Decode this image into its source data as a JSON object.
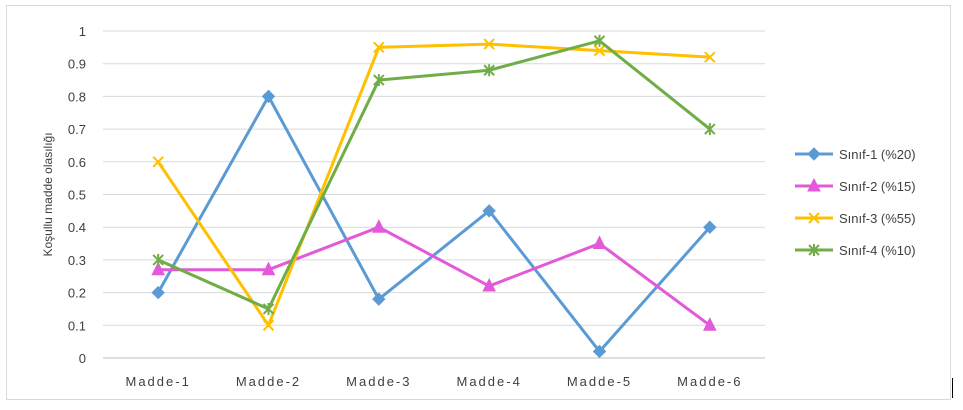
{
  "chart_data": {
    "type": "line",
    "categories": [
      "Madde-1",
      "Madde-2",
      "Madde-3",
      "Madde-4",
      "Madde-5",
      "Madde-6"
    ],
    "ylabel": "Koşullu madde olasılığı",
    "xlabel": "",
    "ylim": [
      0,
      1
    ],
    "yticks": [
      "0",
      "0.1",
      "0.2",
      "0.3",
      "0.4",
      "0.5",
      "0.6",
      "0.7",
      "0.8",
      "0.9",
      "1"
    ],
    "grid": true,
    "legend_position": "right",
    "series": [
      {
        "name": "Sınıf-1 (%20)",
        "color": "#5b9bd5",
        "marker": "diamond",
        "values": [
          0.2,
          0.8,
          0.18,
          0.45,
          0.02,
          0.4
        ]
      },
      {
        "name": "Sınıf-2 (%15)",
        "color": "#e25ad9",
        "marker": "triangle",
        "values": [
          0.27,
          0.27,
          0.4,
          0.22,
          0.35,
          0.1
        ]
      },
      {
        "name": "Sınıf-3 (%55)",
        "color": "#ffc000",
        "marker": "x",
        "values": [
          0.6,
          0.1,
          0.95,
          0.96,
          0.94,
          0.92
        ]
      },
      {
        "name": "Sınıf-4 (%10)",
        "color": "#70ad47",
        "marker": "star",
        "values": [
          0.3,
          0.15,
          0.85,
          0.88,
          0.97,
          0.7
        ]
      }
    ]
  }
}
